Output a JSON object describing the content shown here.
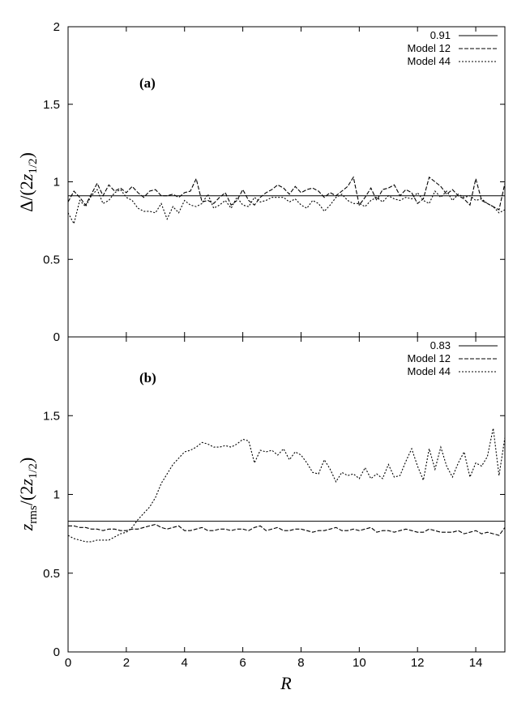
{
  "chart_data": [
    {
      "type": "line",
      "panel_label": "(a)",
      "ylabel": "Δ/(2z1/2)",
      "ylim": [
        0,
        2
      ],
      "xlim": [
        0,
        15
      ],
      "yticks": [
        "0",
        "0.5",
        "1",
        "1.5",
        "2"
      ],
      "legend_position": "top-right",
      "series": [
        {
          "name": "0.91",
          "style": "solid",
          "x": [
            0,
            15
          ],
          "values": [
            0.91,
            0.91
          ]
        },
        {
          "name": "Model 12",
          "style": "dashed",
          "x": [
            0.0,
            0.2,
            0.4,
            0.6,
            0.8,
            1.0,
            1.2,
            1.4,
            1.6,
            1.8,
            2.0,
            2.2,
            2.4,
            2.6,
            2.8,
            3.0,
            3.2,
            3.4,
            3.6,
            3.8,
            4.0,
            4.2,
            4.4,
            4.6,
            4.8,
            5.0,
            5.2,
            5.4,
            5.6,
            5.8,
            6.0,
            6.2,
            6.4,
            6.6,
            6.8,
            7.0,
            7.2,
            7.4,
            7.6,
            7.8,
            8.0,
            8.2,
            8.4,
            8.6,
            8.8,
            9.0,
            9.2,
            9.4,
            9.6,
            9.8,
            10.0,
            10.2,
            10.4,
            10.6,
            10.8,
            11.0,
            11.2,
            11.4,
            11.6,
            11.8,
            12.0,
            12.2,
            12.4,
            12.6,
            12.8,
            13.0,
            13.2,
            13.4,
            13.6,
            13.8,
            14.0,
            14.2,
            14.4,
            14.6,
            14.8,
            15.0
          ],
          "values": [
            0.87,
            0.94,
            0.9,
            0.85,
            0.92,
            0.99,
            0.91,
            0.98,
            0.94,
            0.96,
            0.93,
            0.97,
            0.93,
            0.9,
            0.94,
            0.95,
            0.91,
            0.91,
            0.92,
            0.9,
            0.93,
            0.94,
            1.02,
            0.87,
            0.88,
            0.86,
            0.9,
            0.93,
            0.85,
            0.88,
            0.95,
            0.88,
            0.85,
            0.9,
            0.93,
            0.95,
            0.98,
            0.96,
            0.92,
            0.97,
            0.93,
            0.95,
            0.96,
            0.94,
            0.9,
            0.93,
            0.91,
            0.94,
            0.97,
            1.03,
            0.85,
            0.9,
            0.96,
            0.88,
            0.95,
            0.96,
            0.98,
            0.91,
            0.95,
            0.93,
            0.86,
            0.89,
            1.03,
            1.0,
            0.97,
            0.92,
            0.95,
            0.91,
            0.89,
            0.85,
            1.02,
            0.88,
            0.86,
            0.84,
            0.82,
            0.99
          ]
        },
        {
          "name": "Model 44",
          "style": "dotted",
          "x": [
            0.0,
            0.2,
            0.4,
            0.6,
            0.8,
            1.0,
            1.2,
            1.4,
            1.6,
            1.8,
            2.0,
            2.2,
            2.4,
            2.6,
            2.8,
            3.0,
            3.2,
            3.4,
            3.6,
            3.8,
            4.0,
            4.2,
            4.4,
            4.6,
            4.8,
            5.0,
            5.2,
            5.4,
            5.6,
            5.8,
            6.0,
            6.2,
            6.4,
            6.6,
            6.8,
            7.0,
            7.2,
            7.4,
            7.6,
            7.8,
            8.0,
            8.2,
            8.4,
            8.6,
            8.8,
            9.0,
            9.2,
            9.4,
            9.6,
            9.8,
            10.0,
            10.2,
            10.4,
            10.6,
            10.8,
            11.0,
            11.2,
            11.4,
            11.6,
            11.8,
            12.0,
            12.2,
            12.4,
            12.6,
            12.8,
            13.0,
            13.2,
            13.4,
            13.6,
            13.8,
            14.0,
            14.2,
            14.4,
            14.6,
            14.8,
            15.0
          ],
          "values": [
            0.8,
            0.73,
            0.88,
            0.84,
            0.91,
            0.95,
            0.86,
            0.88,
            0.93,
            0.95,
            0.9,
            0.88,
            0.83,
            0.81,
            0.81,
            0.8,
            0.86,
            0.76,
            0.84,
            0.8,
            0.88,
            0.85,
            0.84,
            0.86,
            0.92,
            0.83,
            0.85,
            0.88,
            0.83,
            0.9,
            0.85,
            0.84,
            0.9,
            0.87,
            0.88,
            0.9,
            0.9,
            0.9,
            0.87,
            0.89,
            0.85,
            0.83,
            0.88,
            0.86,
            0.81,
            0.85,
            0.9,
            0.92,
            0.88,
            0.86,
            0.86,
            0.84,
            0.88,
            0.9,
            0.87,
            0.91,
            0.89,
            0.88,
            0.9,
            0.89,
            0.93,
            0.88,
            0.86,
            0.94,
            0.9,
            0.94,
            0.88,
            0.92,
            0.9,
            0.91,
            0.88,
            0.89,
            0.86,
            0.84,
            0.8,
            0.82
          ]
        }
      ]
    },
    {
      "type": "line",
      "panel_label": "(b)",
      "ylabel": "zrms/(2z1/2)",
      "xlabel": "R",
      "ylim": [
        0,
        2
      ],
      "xlim": [
        0,
        15
      ],
      "yticks": [
        "0",
        "0.5",
        "1",
        "1.5"
      ],
      "xticks": [
        "0",
        "2",
        "4",
        "6",
        "8",
        "10",
        "12",
        "14"
      ],
      "legend_position": "top-right",
      "series": [
        {
          "name": "0.83",
          "style": "solid",
          "x": [
            0,
            15
          ],
          "values": [
            0.83,
            0.83
          ]
        },
        {
          "name": "Model 12",
          "style": "dashed",
          "x": [
            0.0,
            0.2,
            0.4,
            0.6,
            0.8,
            1.0,
            1.2,
            1.4,
            1.6,
            1.8,
            2.0,
            2.2,
            2.4,
            2.6,
            2.8,
            3.0,
            3.2,
            3.4,
            3.6,
            3.8,
            4.0,
            4.2,
            4.4,
            4.6,
            4.8,
            5.0,
            5.2,
            5.4,
            5.6,
            5.8,
            6.0,
            6.2,
            6.4,
            6.6,
            6.8,
            7.0,
            7.2,
            7.4,
            7.6,
            7.8,
            8.0,
            8.2,
            8.4,
            8.6,
            8.8,
            9.0,
            9.2,
            9.4,
            9.6,
            9.8,
            10.0,
            10.2,
            10.4,
            10.6,
            10.8,
            11.0,
            11.2,
            11.4,
            11.6,
            11.8,
            12.0,
            12.2,
            12.4,
            12.6,
            12.8,
            13.0,
            13.2,
            13.4,
            13.6,
            13.8,
            14.0,
            14.2,
            14.4,
            14.6,
            14.8,
            15.0
          ],
          "values": [
            0.8,
            0.8,
            0.79,
            0.79,
            0.78,
            0.78,
            0.77,
            0.78,
            0.78,
            0.77,
            0.77,
            0.78,
            0.78,
            0.79,
            0.8,
            0.81,
            0.79,
            0.78,
            0.79,
            0.8,
            0.77,
            0.77,
            0.78,
            0.79,
            0.77,
            0.77,
            0.78,
            0.78,
            0.77,
            0.78,
            0.78,
            0.77,
            0.79,
            0.8,
            0.77,
            0.78,
            0.79,
            0.77,
            0.77,
            0.78,
            0.78,
            0.77,
            0.76,
            0.77,
            0.77,
            0.78,
            0.79,
            0.77,
            0.77,
            0.78,
            0.77,
            0.78,
            0.79,
            0.76,
            0.77,
            0.77,
            0.76,
            0.77,
            0.78,
            0.77,
            0.76,
            0.76,
            0.78,
            0.77,
            0.76,
            0.76,
            0.76,
            0.77,
            0.75,
            0.76,
            0.77,
            0.75,
            0.76,
            0.75,
            0.74,
            0.79
          ]
        },
        {
          "name": "Model 44",
          "style": "dotted",
          "x": [
            0.0,
            0.2,
            0.4,
            0.6,
            0.8,
            1.0,
            1.2,
            1.4,
            1.6,
            1.8,
            2.0,
            2.2,
            2.4,
            2.6,
            2.8,
            3.0,
            3.2,
            3.4,
            3.6,
            3.8,
            4.0,
            4.2,
            4.4,
            4.6,
            4.8,
            5.0,
            5.2,
            5.4,
            5.6,
            5.8,
            6.0,
            6.2,
            6.4,
            6.6,
            6.8,
            7.0,
            7.2,
            7.4,
            7.6,
            7.8,
            8.0,
            8.2,
            8.4,
            8.6,
            8.8,
            9.0,
            9.2,
            9.4,
            9.6,
            9.8,
            10.0,
            10.2,
            10.4,
            10.6,
            10.8,
            11.0,
            11.2,
            11.4,
            11.6,
            11.8,
            12.0,
            12.2,
            12.4,
            12.6,
            12.8,
            13.0,
            13.2,
            13.4,
            13.6,
            13.8,
            14.0,
            14.2,
            14.4,
            14.6,
            14.8,
            15.0
          ],
          "values": [
            0.74,
            0.72,
            0.71,
            0.7,
            0.7,
            0.71,
            0.71,
            0.71,
            0.73,
            0.75,
            0.76,
            0.79,
            0.84,
            0.88,
            0.92,
            0.98,
            1.07,
            1.13,
            1.19,
            1.23,
            1.27,
            1.28,
            1.3,
            1.33,
            1.32,
            1.3,
            1.3,
            1.31,
            1.3,
            1.32,
            1.35,
            1.34,
            1.2,
            1.28,
            1.27,
            1.28,
            1.25,
            1.29,
            1.22,
            1.27,
            1.25,
            1.2,
            1.14,
            1.13,
            1.22,
            1.16,
            1.08,
            1.14,
            1.12,
            1.13,
            1.1,
            1.17,
            1.1,
            1.13,
            1.1,
            1.19,
            1.11,
            1.12,
            1.21,
            1.29,
            1.18,
            1.09,
            1.29,
            1.16,
            1.3,
            1.18,
            1.11,
            1.2,
            1.27,
            1.11,
            1.2,
            1.18,
            1.24,
            1.42,
            1.12,
            1.36
          ]
        }
      ]
    }
  ]
}
